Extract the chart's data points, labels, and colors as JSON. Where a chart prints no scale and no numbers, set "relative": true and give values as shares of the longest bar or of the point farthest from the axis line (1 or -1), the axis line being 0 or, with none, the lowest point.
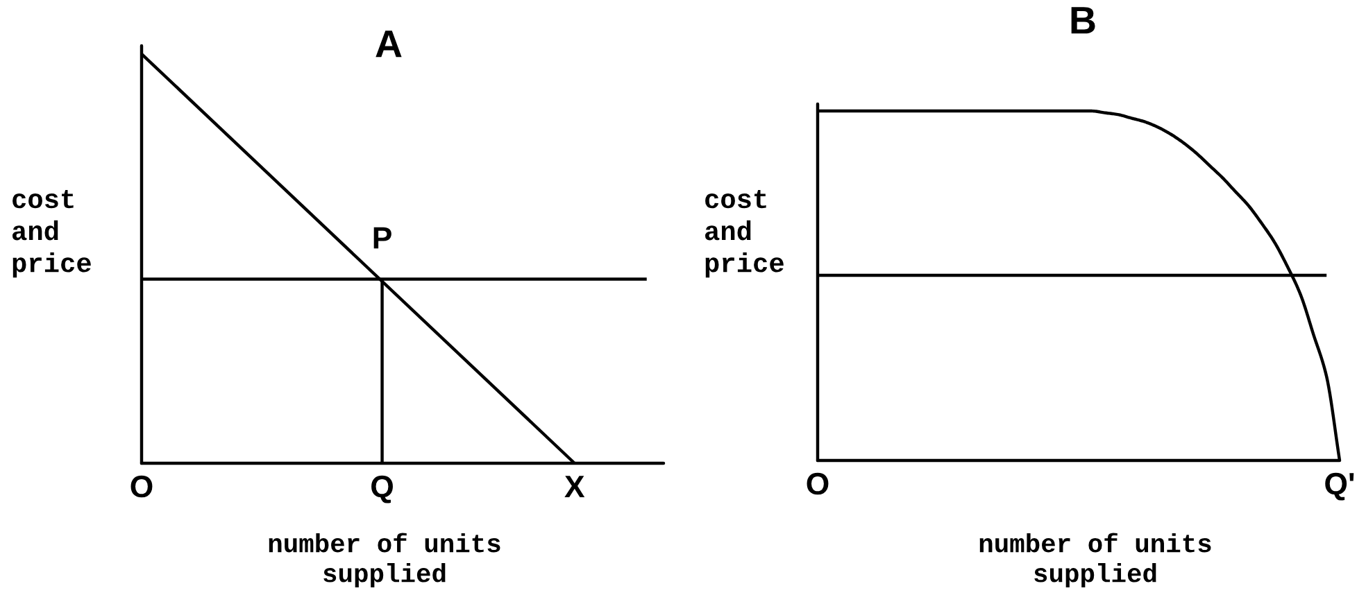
{
  "chart_data": [
    {
      "type": "line",
      "title": "A",
      "xlabel": "number of units\nsupplied",
      "ylabel": "cost\nand\nprice",
      "relative": true,
      "categories": [
        "O",
        null,
        null,
        null,
        null,
        null,
        null,
        null,
        null,
        null,
        "Q",
        null,
        null,
        null,
        null,
        null,
        null,
        null,
        "X",
        null,
        null,
        null
      ],
      "series": [
        {
          "color": "#000000",
          "x": [
            "O",
            "X"
          ],
          "values": [
            1,
            0
          ]
        },
        {
          "color": "#000000",
          "values": [
            0.45,
            0.45,
            0.45,
            0.45,
            0.45,
            0.45,
            0.45,
            0.45,
            0.45,
            0.45,
            0.45,
            0.45,
            0.45,
            0.45,
            0.45,
            0.45,
            0.45,
            0.45,
            0.45,
            0.45,
            0.45,
            0.45
          ]
        },
        {
          "color": "#000000",
          "x": [
            "Q",
            "Q"
          ],
          "values": [
            0.45,
            0
          ]
        }
      ],
      "annotations": [
        {
          "text": "P",
          "x": "Q",
          "y": 0.45
        }
      ]
    },
    {
      "type": "line",
      "title": "B",
      "xlabel": "number of units\nsupplied",
      "ylabel": "cost\nand\nprice",
      "relative": true,
      "categories": [
        "O",
        null,
        null,
        null,
        null,
        null,
        null,
        null,
        null,
        null,
        null,
        null,
        null,
        null,
        null,
        null,
        null,
        null,
        null,
        null,
        null,
        null,
        null,
        null,
        null,
        null,
        null,
        null,
        null,
        null,
        null,
        null,
        null,
        null,
        null,
        null,
        null,
        null,
        null,
        null,
        "Q'"
      ],
      "series": [
        {
          "color": "#000000",
          "values": [
            1,
            1,
            1,
            1,
            1,
            1,
            1,
            1,
            1,
            1,
            1,
            1,
            1,
            1,
            1,
            1,
            1,
            1,
            1,
            1,
            1,
            1,
            0.995,
            0.99,
            0.98,
            0.97,
            0.955,
            0.935,
            0.91,
            0.88,
            0.845,
            0.81,
            0.77,
            0.73,
            0.68,
            0.625,
            0.555,
            0.475,
            0.36,
            0.24,
            0
          ]
        },
        {
          "color": "#000000",
          "values": [
            0.53,
            0.53,
            0.53,
            0.53,
            0.53,
            0.53,
            0.53,
            0.53,
            0.53,
            0.53,
            0.53,
            0.53,
            0.53,
            0.53,
            0.53,
            0.53,
            0.53,
            0.53,
            0.53,
            0.53,
            0.53,
            0.53,
            0.53,
            0.53,
            0.53,
            0.53,
            0.53,
            0.53,
            0.53,
            0.53,
            0.53,
            0.53,
            0.53,
            0.53,
            0.53,
            0.53,
            0.53,
            0.53,
            0.53,
            0.53,
            null
          ]
        }
      ]
    }
  ]
}
